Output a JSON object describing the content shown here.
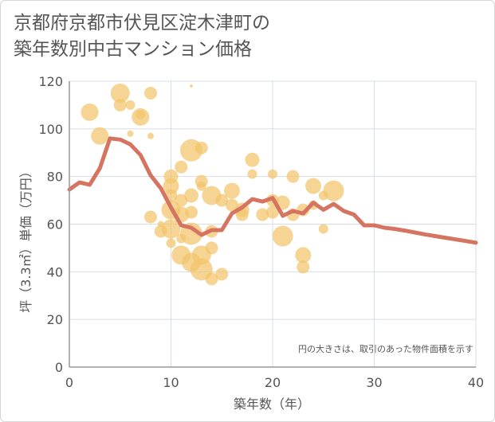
{
  "title_lines": [
    "京都府京都市伏見区淀木津町の",
    "築年数別中古マンション価格"
  ],
  "colors": {
    "bubble": "#f3c56b",
    "line": "#d57461",
    "grid": "#d7dde6",
    "axis": "#999999",
    "text": "#555555"
  },
  "chart_data": {
    "type": "scatter",
    "title": "京都府京都市伏見区淀木津町の築年数別中古マンション価格",
    "xlabel": "築年数（年）",
    "ylabel": "坪（3.3㎡）単価（万円）",
    "xlim": [
      0,
      40
    ],
    "ylim": [
      0,
      120
    ],
    "x_ticks": [
      0,
      10,
      20,
      30,
      40
    ],
    "y_ticks": [
      0,
      20,
      40,
      60,
      80,
      100,
      120
    ],
    "grid": true,
    "note": "円の大きさは、取引のあった物件面積を示す",
    "points": [
      {
        "x": 2,
        "y": 107,
        "r": 11
      },
      {
        "x": 3,
        "y": 97,
        "r": 11
      },
      {
        "x": 5,
        "y": 115,
        "r": 12
      },
      {
        "x": 5,
        "y": 110,
        "r": 8
      },
      {
        "x": 6,
        "y": 110,
        "r": 6
      },
      {
        "x": 6,
        "y": 98,
        "r": 4
      },
      {
        "x": 7,
        "y": 105,
        "r": 11
      },
      {
        "x": 7,
        "y": 106,
        "r": 6
      },
      {
        "x": 8,
        "y": 115,
        "r": 8
      },
      {
        "x": 8,
        "y": 97,
        "r": 4
      },
      {
        "x": 8,
        "y": 63,
        "r": 8
      },
      {
        "x": 9,
        "y": 57,
        "r": 8
      },
      {
        "x": 9,
        "y": 60,
        "r": 4
      },
      {
        "x": 10,
        "y": 80,
        "r": 9
      },
      {
        "x": 10,
        "y": 76,
        "r": 10
      },
      {
        "x": 10,
        "y": 72,
        "r": 8
      },
      {
        "x": 10,
        "y": 66,
        "r": 12
      },
      {
        "x": 10,
        "y": 58,
        "r": 12
      },
      {
        "x": 10,
        "y": 52,
        "r": 6
      },
      {
        "x": 11,
        "y": 84,
        "r": 8
      },
      {
        "x": 11,
        "y": 70,
        "r": 8
      },
      {
        "x": 11,
        "y": 64,
        "r": 10
      },
      {
        "x": 11,
        "y": 54,
        "r": 6
      },
      {
        "x": 11,
        "y": 47,
        "r": 12
      },
      {
        "x": 12,
        "y": 118,
        "r": 2
      },
      {
        "x": 12,
        "y": 91,
        "r": 14
      },
      {
        "x": 12,
        "y": 72,
        "r": 9
      },
      {
        "x": 12,
        "y": 65,
        "r": 8
      },
      {
        "x": 12,
        "y": 56,
        "r": 14
      },
      {
        "x": 12,
        "y": 44,
        "r": 12
      },
      {
        "x": 13,
        "y": 92,
        "r": 8
      },
      {
        "x": 13,
        "y": 78,
        "r": 8
      },
      {
        "x": 13,
        "y": 76,
        "r": 6
      },
      {
        "x": 13,
        "y": 47,
        "r": 12
      },
      {
        "x": 13,
        "y": 41,
        "r": 14
      },
      {
        "x": 14,
        "y": 72,
        "r": 12
      },
      {
        "x": 14,
        "y": 57,
        "r": 8
      },
      {
        "x": 14,
        "y": 50,
        "r": 8
      },
      {
        "x": 14,
        "y": 37,
        "r": 8
      },
      {
        "x": 15,
        "y": 70,
        "r": 8
      },
      {
        "x": 15,
        "y": 39,
        "r": 8
      },
      {
        "x": 16,
        "y": 74,
        "r": 10
      },
      {
        "x": 16,
        "y": 68,
        "r": 8
      },
      {
        "x": 17,
        "y": 66,
        "r": 9
      },
      {
        "x": 17,
        "y": 64,
        "r": 8
      },
      {
        "x": 18,
        "y": 87,
        "r": 9
      },
      {
        "x": 18,
        "y": 81,
        "r": 6
      },
      {
        "x": 19,
        "y": 64,
        "r": 8
      },
      {
        "x": 20,
        "y": 81,
        "r": 6
      },
      {
        "x": 20,
        "y": 70,
        "r": 8
      },
      {
        "x": 20,
        "y": 65,
        "r": 8
      },
      {
        "x": 21,
        "y": 69,
        "r": 9
      },
      {
        "x": 21,
        "y": 55,
        "r": 13
      },
      {
        "x": 22,
        "y": 80,
        "r": 8
      },
      {
        "x": 22,
        "y": 64,
        "r": 8
      },
      {
        "x": 23,
        "y": 66,
        "r": 8
      },
      {
        "x": 23,
        "y": 47,
        "r": 10
      },
      {
        "x": 23,
        "y": 42,
        "r": 8
      },
      {
        "x": 24,
        "y": 76,
        "r": 10
      },
      {
        "x": 24,
        "y": 68,
        "r": 6
      },
      {
        "x": 25,
        "y": 72,
        "r": 6
      },
      {
        "x": 25,
        "y": 58,
        "r": 6
      },
      {
        "x": 26,
        "y": 74,
        "r": 13
      }
    ],
    "trend_line": {
      "x": [
        0,
        1,
        2,
        3,
        4,
        5,
        6,
        7,
        8,
        9,
        10,
        11,
        12,
        13,
        14,
        15,
        16,
        17,
        18,
        19,
        20,
        21,
        22,
        23,
        24,
        25,
        26,
        27,
        28,
        29,
        30,
        31,
        32,
        33,
        34,
        35,
        36,
        37,
        38,
        39,
        40
      ],
      "y": [
        74.5,
        77.5,
        76.5,
        83.5,
        96,
        95.5,
        93.5,
        89,
        80.5,
        75,
        67,
        59.5,
        58.5,
        55.5,
        57.5,
        57.5,
        64.5,
        67,
        70.5,
        69.5,
        71,
        63.5,
        65.5,
        64.5,
        69,
        66,
        68.5,
        65.5,
        64,
        59.5,
        59.5,
        58.5,
        58,
        57.3,
        56.5,
        55.7,
        55,
        54.3,
        53.6,
        52.9,
        52.2
      ]
    }
  }
}
